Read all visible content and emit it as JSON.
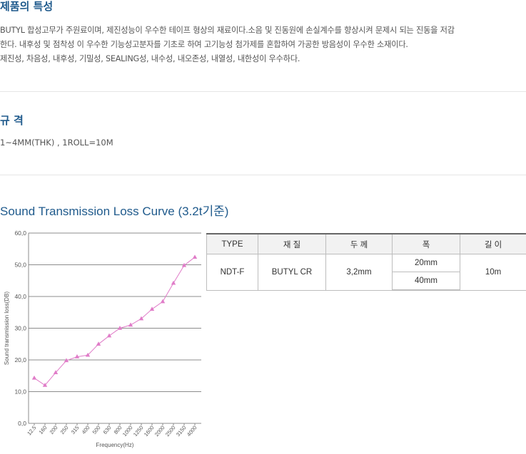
{
  "section1": {
    "title": "제품의 특성",
    "lines": [
      "BUTYL 합성고무가 주원료이며, 제진성능이 우수한 테이프 형상의 재료이다.소음 및 진동원에 손실계수를 향상시켜 문제시 되는 진동을 저감",
      "한다. 내후성 및 점착성 이 우수한 기능성고분자를 기초로 하여 고기능성 첨가제를 혼합하여 가공한 방음성이 우수한 소재이다.",
      "제진성, 차음성, 내후성, 기밀성, SEALING성, 내수성, 내오존성, 내열성, 내한성이 우수하다."
    ]
  },
  "section2": {
    "title": "규 격",
    "spec": "1~4MM(THK) , 1ROLL=10M"
  },
  "section3": {
    "title": "Sound Transmission Loss Curve (3.2t기준)"
  },
  "chart_data": {
    "type": "line",
    "xlabel": "Frequency(Hz)",
    "ylabel": "Sound transmission loss(DB)",
    "ylim": [
      0,
      60
    ],
    "yticks": [
      "0,0",
      "10,0",
      "20,0",
      "30,0",
      "40,0",
      "50,0",
      "60,0"
    ],
    "categories": [
      "12.5",
      "160",
      "200",
      "250",
      "315",
      "400",
      "500",
      "630",
      "800",
      "1000",
      "1250",
      "1600",
      "2000",
      "2500",
      "3150",
      "4000"
    ],
    "values": [
      14.3,
      12,
      16,
      19.8,
      21,
      21.5,
      25,
      27.6,
      30,
      31,
      33,
      36,
      38.4,
      44.2,
      49.8,
      52.4
    ],
    "line_color": "#e07cc8",
    "grid": true
  },
  "table": {
    "headers": [
      "TYPE",
      "재  질",
      "두  께",
      "폭",
      "길  이"
    ],
    "type": "NDT-F",
    "material": "BUTYL CR",
    "thickness": "3,2mm",
    "widths": [
      "20mm",
      "40mm"
    ],
    "length": "10m"
  }
}
